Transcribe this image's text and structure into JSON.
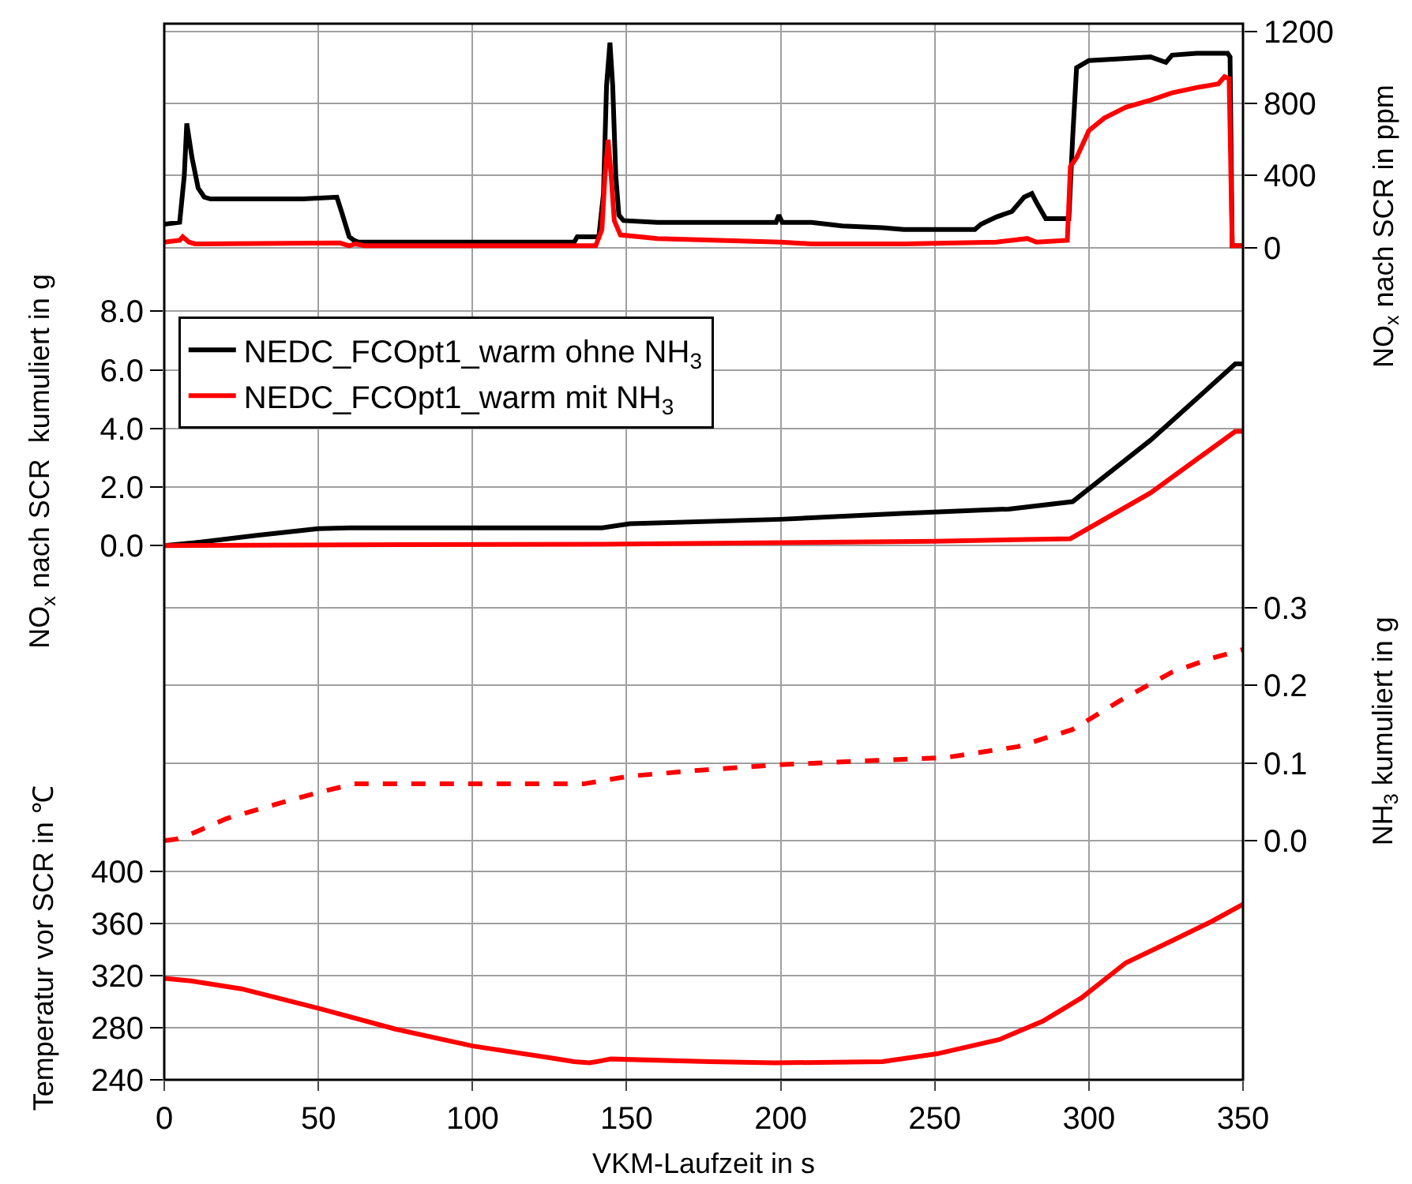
{
  "chart_data": [
    {
      "type": "line",
      "y2label": "NO$_{x}$ nach SCR in ppm",
      "xlim": [
        0,
        350
      ],
      "xticks": [
        0,
        50,
        100,
        150,
        200,
        250,
        300,
        350
      ],
      "y2lim": [
        -175,
        1245
      ],
      "y2ticks": [
        0,
        400,
        800,
        1200
      ],
      "grid": true,
      "tick_labels": "y",
      "series": [
        {
          "color": "#000000",
          "axis": "y2",
          "x": [
            0,
            5,
            6.5,
            7.3,
            9,
            11,
            13,
            15,
            30,
            45,
            56,
            57.5,
            60,
            61.5,
            63,
            80,
            100,
            120,
            133,
            134,
            141,
            142.5,
            143.5,
            144.6,
            145.5,
            146.5,
            147.5,
            149,
            160,
            180,
            198.5,
            199.4,
            200.5,
            210,
            220,
            233,
            240,
            263,
            265,
            270,
            275,
            279,
            281.5,
            283,
            286,
            293.5,
            294.7,
            296,
            300,
            310,
            320,
            325,
            327,
            335,
            345,
            345.8,
            346.5,
            350
          ],
          "values": [
            130,
            140,
            400,
            690,
            500,
            330,
            280,
            270,
            270,
            270,
            280,
            200,
            60,
            40,
            30,
            30,
            30,
            30,
            30,
            60,
            60,
            300,
            900,
            1140,
            900,
            400,
            180,
            150,
            140,
            140,
            140,
            180,
            140,
            140,
            120,
            110,
            100,
            100,
            130,
            170,
            200,
            280,
            300,
            250,
            160,
            160,
            600,
            1000,
            1040,
            1050,
            1060,
            1030,
            1070,
            1080,
            1080,
            1060,
            10,
            10
          ]
        },
        {
          "color": "#ff0000",
          "axis": "y2",
          "x": [
            0,
            5,
            6,
            8,
            10,
            57,
            60,
            62,
            65,
            140,
            142,
            143,
            144,
            145,
            146,
            148,
            160,
            180,
            200,
            210,
            240,
            270,
            280,
            283,
            293,
            294,
            296,
            300,
            305,
            312,
            320,
            327,
            335,
            342,
            344,
            345.5,
            346.5,
            350
          ],
          "values": [
            30,
            40,
            60,
            30,
            20,
            25,
            10,
            20,
            10,
            10,
            100,
            400,
            600,
            400,
            150,
            70,
            50,
            40,
            30,
            20,
            20,
            30,
            50,
            30,
            40,
            450,
            500,
            650,
            720,
            780,
            820,
            860,
            890,
            910,
            950,
            940,
            10,
            10
          ]
        }
      ]
    },
    {
      "type": "line",
      "ylabel": "NO$_{x}$ nach SCR  kumuliert in g",
      "xlim": [
        0,
        350
      ],
      "xticks": [
        0,
        50,
        100,
        150,
        200,
        250,
        300,
        350
      ],
      "ylim": [
        -1.0,
        9.1
      ],
      "yticks": [
        {
          "value": 0,
          "label": "0.0"
        },
        {
          "value": 2,
          "label": "2.0"
        },
        {
          "value": 4,
          "label": "4.0"
        },
        {
          "value": 6,
          "label": "6.0"
        },
        {
          "value": 8,
          "label": "8.0"
        }
      ],
      "grid": true,
      "tick_labels": "y",
      "legend": "top left",
      "series": [
        {
          "name": "NEDC_FCOpt1_warm ohne NH$_{3}$",
          "color": "#000000",
          "x": [
            0,
            10,
            30,
            50,
            60,
            142,
            151,
            200,
            239,
            274,
            294.7,
            320,
            347.5,
            350
          ],
          "values": [
            0,
            0.1,
            0.35,
            0.58,
            0.61,
            0.61,
            0.75,
            0.9,
            1.1,
            1.25,
            1.5,
            3.6,
            6.2,
            6.2
          ]
        },
        {
          "name": "NEDC_FCOpt1_warm mit NH$_{3}$",
          "color": "#ff0000",
          "x": [
            0,
            60,
            142,
            200,
            250,
            294,
            320,
            347.5,
            350
          ],
          "values": [
            0,
            0.03,
            0.05,
            0.1,
            0.15,
            0.24,
            1.8,
            3.9,
            3.9
          ]
        }
      ]
    },
    {
      "type": "line",
      "y2label": "NH$_{3}$ kumuliert in g",
      "xlim": [
        0,
        350
      ],
      "xticks": [
        0,
        50,
        100,
        150,
        200,
        250,
        300,
        350
      ],
      "y2lim": [
        -0.02,
        0.342
      ],
      "y2ticks": [
        {
          "value": 0,
          "label": "0.0"
        },
        {
          "value": 0.1,
          "label": "0.1"
        },
        {
          "value": 0.2,
          "label": "0.2"
        },
        {
          "value": 0.3,
          "label": "0.3"
        }
      ],
      "grid": true,
      "tick_labels": "y",
      "line_style": "dashed",
      "series": [
        {
          "color": "#ff0000",
          "axis": "y2",
          "x": [
            0,
            4,
            7.3,
            20,
            33.7,
            50,
            61.6,
            100,
            136,
            151,
            175,
            201,
            230,
            253.7,
            277,
            294.7,
            310,
            327,
            340,
            350
          ],
          "values": [
            0,
            0.002,
            0.006,
            0.028,
            0.044,
            0.062,
            0.073,
            0.073,
            0.073,
            0.083,
            0.091,
            0.098,
            0.103,
            0.107,
            0.121,
            0.143,
            0.18,
            0.217,
            0.235,
            0.246
          ]
        }
      ]
    },
    {
      "type": "line",
      "ylabel": "Temperatur vor SCR in ℃",
      "xlabel": "VKM-Laufzeit in s",
      "xlim": [
        0,
        350
      ],
      "xticks": [
        0,
        50,
        100,
        150,
        200,
        250,
        300,
        350
      ],
      "ylim": [
        240,
        412
      ],
      "yticks": [
        240,
        280,
        320,
        360,
        400
      ],
      "grid": true,
      "series": [
        {
          "color": "#ff0000",
          "x": [
            0,
            8.8,
            25,
            50,
            75,
            100,
            125,
            133,
            138,
            145,
            177,
            198,
            233,
            250.7,
            271,
            285,
            292,
            297.6,
            312,
            327,
            340,
            350
          ],
          "values": [
            318,
            316,
            310,
            295,
            279,
            266,
            257,
            254,
            253,
            256,
            254,
            253,
            254,
            260,
            271,
            285,
            295,
            303,
            330,
            347,
            362,
            375
          ]
        }
      ]
    }
  ]
}
